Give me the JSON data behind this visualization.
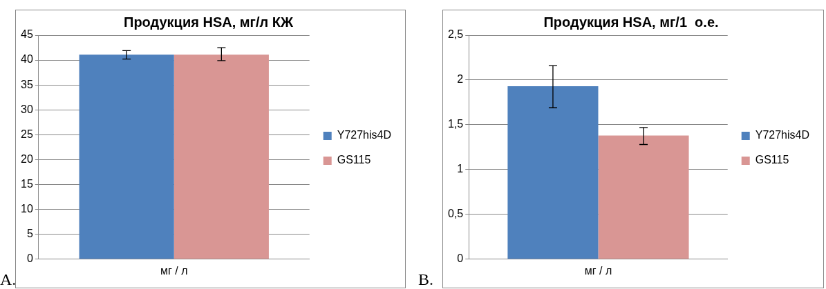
{
  "chart_data": [
    {
      "type": "bar",
      "title": "Продукция HSA, мг/л КЖ",
      "categories": [
        "мг / л"
      ],
      "annotations": [
        "A."
      ],
      "series": [
        {
          "name": "Y727his4D",
          "color": "#4f81bd",
          "values": [
            41.1
          ],
          "errors": [
            [
              40.2,
              41.9
            ]
          ]
        },
        {
          "name": "GS115",
          "color": "#d99694",
          "values": [
            41.1
          ],
          "errors": [
            [
              39.9,
              42.5
            ]
          ]
        }
      ],
      "ylim": [
        0,
        45
      ],
      "yticks": [
        0,
        5,
        10,
        15,
        20,
        25,
        30,
        35,
        40,
        45
      ],
      "grid": "y",
      "legend": "right"
    },
    {
      "type": "bar",
      "title": "Продукция HSA, мг/1  о.е.",
      "categories": [
        "мг / л"
      ],
      "annotations": [
        "B."
      ],
      "series": [
        {
          "name": "Y727his4D",
          "color": "#4f81bd",
          "values": [
            1.93
          ],
          "errors": [
            [
              1.69,
              2.16
            ]
          ]
        },
        {
          "name": "GS115",
          "color": "#d99694",
          "values": [
            1.38
          ],
          "errors": [
            [
              1.28,
              1.47
            ]
          ]
        }
      ],
      "ylim": [
        0,
        2.5
      ],
      "yticks": [
        0,
        {
          "value": 0.5,
          "label": "0,5"
        },
        1,
        {
          "value": 1.5,
          "label": "1,5"
        },
        2,
        {
          "value": 2.5,
          "label": "2,5"
        }
      ],
      "grid": "y",
      "legend": "right"
    }
  ]
}
